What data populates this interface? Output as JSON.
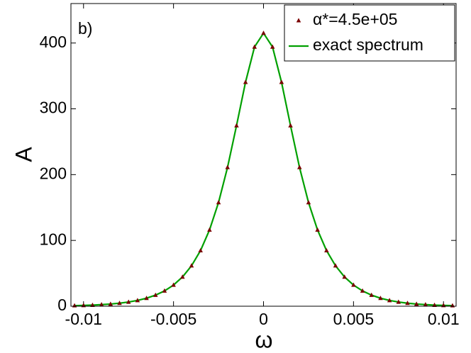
{
  "chart_data": {
    "type": "line",
    "annotation": "b)",
    "xlabel": "ω",
    "ylabel": "A",
    "x": [
      -0.0105,
      -0.01,
      -0.0095,
      -0.009,
      -0.0085,
      -0.008,
      -0.0075,
      -0.007,
      -0.0065,
      -0.006,
      -0.0055,
      -0.005,
      -0.0045,
      -0.004,
      -0.0035,
      -0.003,
      -0.0025,
      -0.002,
      -0.0015,
      -0.001,
      -0.0005,
      0,
      0.0005,
      0.001,
      0.0015,
      0.002,
      0.0025,
      0.003,
      0.0035,
      0.004,
      0.0045,
      0.005,
      0.0055,
      0.006,
      0.0065,
      0.007,
      0.0075,
      0.008,
      0.0085,
      0.009,
      0.0095,
      0.01,
      0.0105
    ],
    "series": [
      {
        "name": "α*=4.5e+05",
        "color": "#7a0000",
        "marker": "triangle",
        "values": [
          0.9,
          1.3,
          1.7,
          2.4,
          3.3,
          4.6,
          6.4,
          8.8,
          12.2,
          16.9,
          23.3,
          32.2,
          44.5,
          61.5,
          84.6,
          116.0,
          157.6,
          211.0,
          274.5,
          340.5,
          394.1,
          415,
          394.1,
          340.5,
          274.5,
          211.0,
          157.6,
          116.0,
          84.6,
          61.5,
          44.5,
          32.2,
          23.3,
          16.9,
          12.2,
          8.8,
          6.4,
          4.6,
          3.3,
          2.4,
          1.7,
          1.3,
          0.9
        ]
      },
      {
        "name": "exact spectrum",
        "color": "#00a000",
        "values": [
          0.9,
          1.3,
          1.7,
          2.4,
          3.3,
          4.6,
          6.4,
          8.8,
          12.2,
          16.9,
          23.3,
          32.2,
          44.5,
          61.5,
          84.6,
          116.0,
          157.6,
          211.0,
          274.5,
          340.5,
          394.1,
          415,
          394.1,
          340.5,
          274.5,
          211.0,
          157.6,
          116.0,
          84.6,
          61.5,
          44.5,
          32.2,
          23.3,
          16.9,
          12.2,
          8.8,
          6.4,
          4.6,
          3.3,
          2.4,
          1.7,
          1.3,
          0.9
        ]
      }
    ],
    "xlim": [
      -0.0107,
      0.0107
    ],
    "xticks": [
      -0.01,
      -0.005,
      0,
      0.005,
      0.01
    ],
    "ylim": [
      0,
      460
    ],
    "yticks": [
      0,
      100,
      200,
      300,
      400
    ],
    "grid": false,
    "legend": "upper right"
  }
}
